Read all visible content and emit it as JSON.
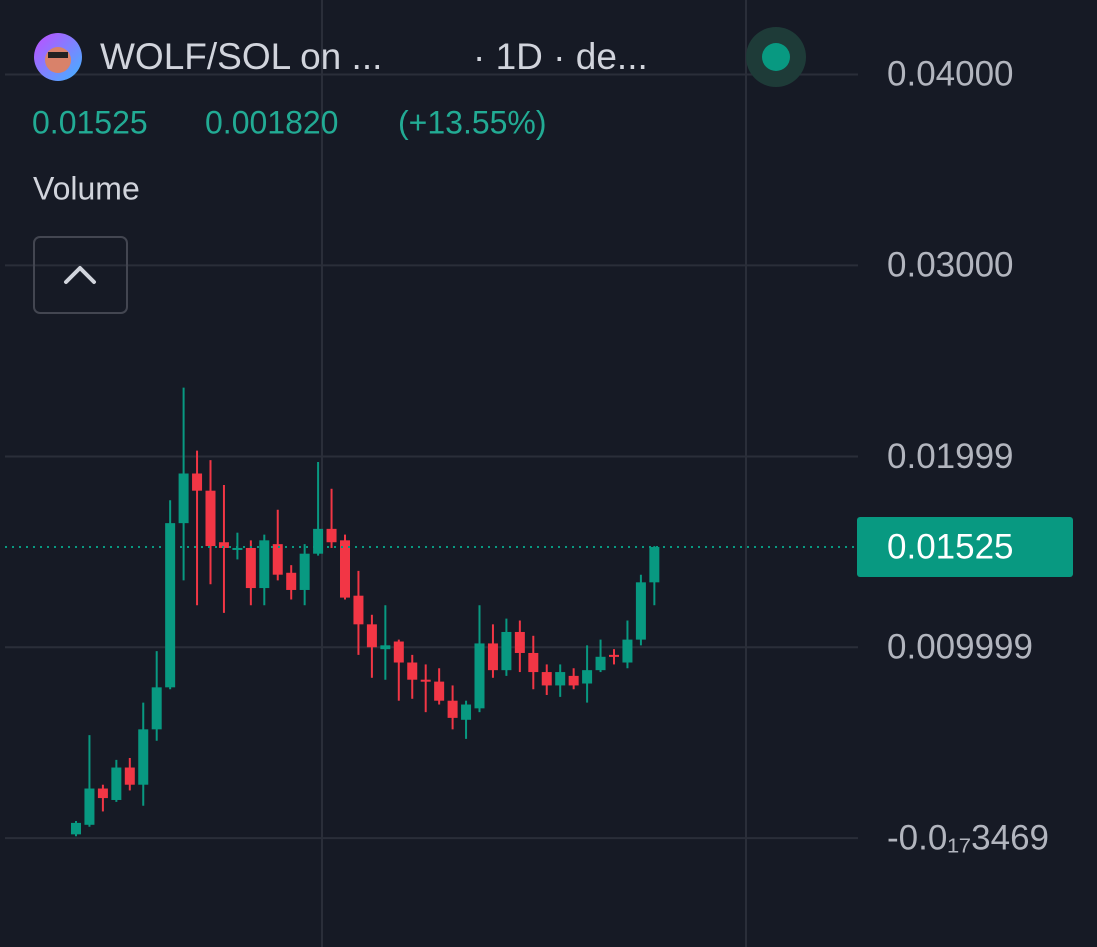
{
  "chart_data": {
    "type": "candlestick",
    "title": "WOLF/SOL on ...",
    "subtitle": "· 1D · de...",
    "indicator_label": "Volume",
    "change": {
      "value": 0.00182,
      "label": "0.001820"
    },
    "change_percent": {
      "value": 13.55,
      "label": "(+13.55%)"
    },
    "open": [
      0.0002,
      0.0007,
      0.0026,
      0.002,
      0.0037,
      0.0028,
      0.0057,
      0.0079,
      0.0165,
      0.0191,
      0.0182,
      0.0155,
      0.0151,
      0.0152,
      0.0131,
      0.0154,
      0.0139,
      0.013,
      0.0149,
      0.0162,
      0.0156,
      0.0127,
      0.0112,
      0.0099,
      0.0103,
      0.0092,
      0.0083,
      0.0082,
      0.0072,
      0.0062,
      0.0068,
      0.0102,
      0.0088,
      0.0108,
      0.0097,
      0.0087,
      0.008,
      0.0085,
      0.0081,
      0.0088,
      0.0096,
      0.0092,
      0.0104,
      0.0134
    ],
    "high": [
      0.0009,
      0.0054,
      0.0028,
      0.0041,
      0.0042,
      0.0071,
      0.0098,
      0.0177,
      0.0236,
      0.0203,
      0.0198,
      0.0185,
      0.016,
      0.0156,
      0.0159,
      0.0172,
      0.0143,
      0.0154,
      0.0197,
      0.0183,
      0.0159,
      0.014,
      0.0117,
      0.0122,
      0.0104,
      0.0096,
      0.0091,
      0.0089,
      0.008,
      0.0072,
      0.0122,
      0.0112,
      0.0115,
      0.0114,
      0.0106,
      0.0091,
      0.0091,
      0.0089,
      0.0101,
      0.0104,
      0.0099,
      0.0114,
      0.0138,
      0.0153
    ],
    "low": [
      0.0001,
      0.0006,
      0.0014,
      0.0019,
      0.0025,
      0.0017,
      0.0051,
      0.0078,
      0.0135,
      0.0122,
      0.0133,
      0.0118,
      0.0146,
      0.0122,
      0.0122,
      0.0135,
      0.0125,
      0.0122,
      0.0148,
      0.0152,
      0.0125,
      0.0096,
      0.0084,
      0.0083,
      0.0072,
      0.0073,
      0.0066,
      0.007,
      0.0057,
      0.0052,
      0.0066,
      0.0084,
      0.0085,
      0.0087,
      0.0078,
      0.0075,
      0.0074,
      0.0078,
      0.0071,
      0.0087,
      0.0091,
      0.0089,
      0.0101,
      0.0122
    ],
    "close": [
      0.0008,
      0.0026,
      0.0021,
      0.0037,
      0.0028,
      0.0057,
      0.0079,
      0.0165,
      0.0191,
      0.0182,
      0.0153,
      0.0152,
      0.0152,
      0.0131,
      0.0156,
      0.0138,
      0.013,
      0.0149,
      0.0162,
      0.0155,
      0.0126,
      0.0112,
      0.01,
      0.0101,
      0.0092,
      0.0083,
      0.0082,
      0.0072,
      0.0063,
      0.007,
      0.0102,
      0.0088,
      0.0108,
      0.0097,
      0.0087,
      0.008,
      0.0087,
      0.008,
      0.0088,
      0.0095,
      0.0095,
      0.0104,
      0.0134,
      0.01525
    ],
    "ylim": [
      -0.0057,
      0.0439
    ],
    "yticks": [
      {
        "value": -3.469e-18,
        "label": "-0.0₁₇3469"
      },
      0.009999,
      0.01999,
      {
        "value": 0.03,
        "label": "0.03000"
      },
      {
        "value": 0.04,
        "label": "0.04000"
      }
    ],
    "up_color": "#089981",
    "down_color": "#f23645",
    "grid": true
  }
}
